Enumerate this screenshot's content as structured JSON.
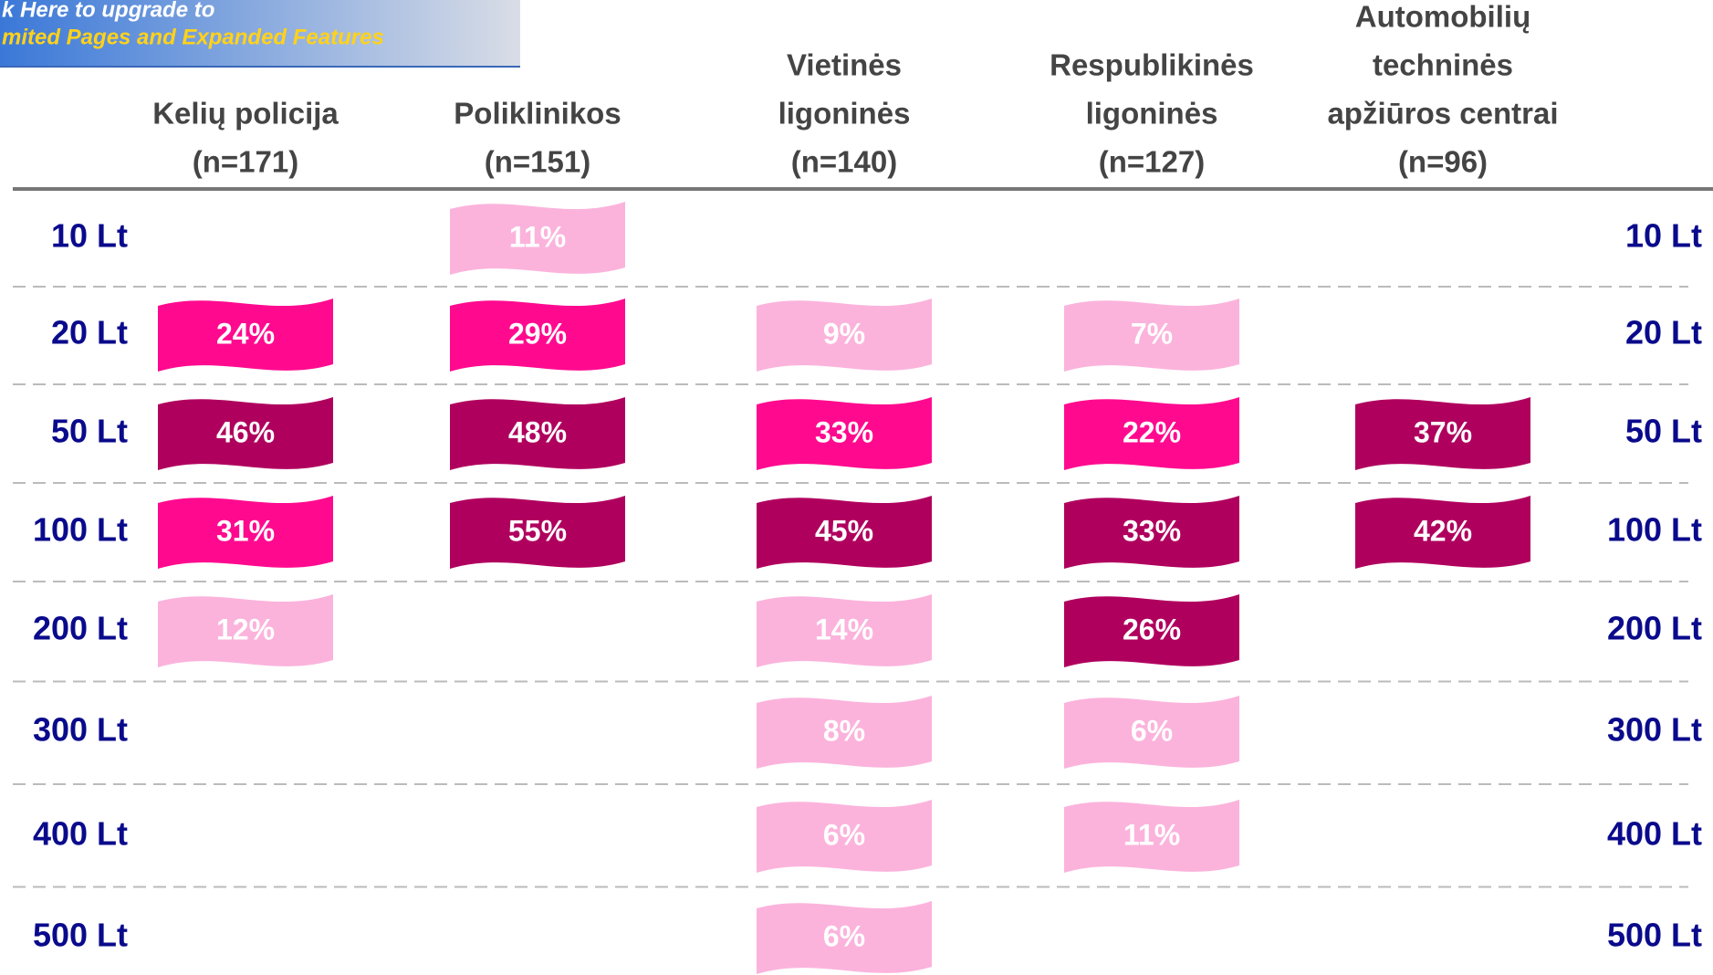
{
  "banner": {
    "lines": [
      "k Here to upgrade to",
      "mited Pages and Expanded Features"
    ]
  },
  "columns": [
    {
      "lines": [
        "Kelių policija",
        "(n=171)"
      ]
    },
    {
      "lines": [
        "Poliklinikos",
        "(n=151)"
      ]
    },
    {
      "lines": [
        "Vietinės",
        "ligoninės",
        "(n=140)"
      ]
    },
    {
      "lines": [
        "Respublikinės",
        "ligoninės",
        "(n=127)"
      ]
    },
    {
      "lines": [
        "Automobilių",
        "techninės",
        "apžiūros centrai",
        "(n=96)"
      ]
    }
  ],
  "rows": [
    {
      "label": "10 Lt",
      "cells": [
        null,
        {
          "text": "11%",
          "color": "#fbb3dc"
        },
        null,
        null,
        null
      ]
    },
    {
      "label": "20 Lt",
      "cells": [
        {
          "text": "24%",
          "color": "#ff0a8f"
        },
        {
          "text": "29%",
          "color": "#ff0a8f"
        },
        {
          "text": "9%",
          "color": "#fbb3dc"
        },
        {
          "text": "7%",
          "color": "#fbb3dc"
        },
        null
      ]
    },
    {
      "label": "50 Lt",
      "cells": [
        {
          "text": "46%",
          "color": "#b0005e"
        },
        {
          "text": "48%",
          "color": "#b0005e"
        },
        {
          "text": "33%",
          "color": "#ff0a8f"
        },
        {
          "text": "22%",
          "color": "#ff0a8f"
        },
        {
          "text": "37%",
          "color": "#b0005e"
        }
      ]
    },
    {
      "label": "100 Lt",
      "cells": [
        {
          "text": "31%",
          "color": "#ff0a8f"
        },
        {
          "text": "55%",
          "color": "#b0005e"
        },
        {
          "text": "45%",
          "color": "#b0005e"
        },
        {
          "text": "33%",
          "color": "#b0005e"
        },
        {
          "text": "42%",
          "color": "#b0005e"
        }
      ]
    },
    {
      "label": "200 Lt",
      "cells": [
        {
          "text": "12%",
          "color": "#fbb3dc"
        },
        null,
        {
          "text": "14%",
          "color": "#fbb3dc"
        },
        {
          "text": "26%",
          "color": "#b0005e"
        },
        null
      ]
    },
    {
      "label": "300 Lt",
      "cells": [
        null,
        null,
        {
          "text": "8%",
          "color": "#fbb3dc"
        },
        {
          "text": "6%",
          "color": "#fbb3dc"
        },
        null
      ]
    },
    {
      "label": "400 Lt",
      "cells": [
        null,
        null,
        {
          "text": "6%",
          "color": "#fbb3dc"
        },
        {
          "text": "11%",
          "color": "#fbb3dc"
        },
        null
      ]
    },
    {
      "label": "500 Lt",
      "cells": [
        null,
        null,
        {
          "text": "6%",
          "color": "#fbb3dc"
        },
        null,
        null
      ]
    }
  ]
}
